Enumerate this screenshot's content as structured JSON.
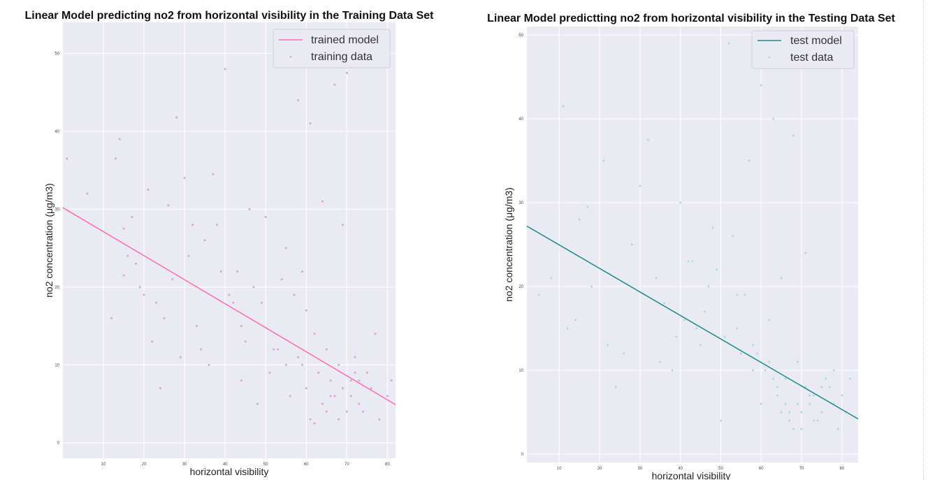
{
  "chart_data": [
    {
      "type": "scatter",
      "title": "Linear Model predicting no2 from horizontal visibility in the Training Data Set",
      "xlabel": "horizontal visibility",
      "ylabel": "no2 concentration (μg/m3)",
      "xlim": [
        0,
        82
      ],
      "ylim": [
        -2,
        54
      ],
      "xticks": [
        10,
        20,
        30,
        40,
        50,
        60,
        70,
        80
      ],
      "yticks": [
        0,
        10,
        20,
        30,
        40,
        50
      ],
      "grid": true,
      "background": "#eaeaf2",
      "legend_position": "top-right",
      "series": [
        {
          "name": "trained model",
          "kind": "line",
          "color": "#ff69b4",
          "x": [
            0,
            82
          ],
          "y": [
            30.2,
            4.9
          ]
        },
        {
          "name": "training data",
          "kind": "points",
          "color": "#dda0dd",
          "x": [
            1,
            6,
            13,
            12,
            15,
            14,
            15,
            17,
            18,
            20,
            21,
            24,
            26,
            27,
            28,
            30,
            31,
            32,
            35,
            37,
            38,
            40,
            41,
            43,
            44,
            46,
            47,
            49,
            50,
            52,
            54,
            55,
            57,
            58,
            59,
            60,
            61,
            63,
            64,
            65,
            66,
            67,
            68,
            69,
            70,
            71,
            72,
            73,
            74,
            75,
            76,
            77,
            78,
            80,
            81,
            33,
            36,
            39,
            42,
            45,
            48,
            51,
            53,
            56,
            62,
            29,
            25,
            22,
            19,
            16,
            23,
            34,
            44,
            55,
            66,
            70,
            72,
            68,
            64,
            60,
            58,
            62,
            67,
            71,
            73,
            65,
            69,
            63,
            61,
            59
          ],
          "y": [
            36.5,
            32,
            36.5,
            16,
            27.5,
            39,
            21.5,
            29,
            23,
            19,
            32.5,
            7,
            30.5,
            21,
            41.8,
            34,
            24,
            28,
            26,
            34.5,
            28,
            48,
            19,
            22,
            15,
            30,
            20,
            18,
            29,
            12,
            21,
            25,
            19,
            44,
            22,
            17,
            41,
            9,
            31,
            12,
            8,
            46,
            10,
            28,
            47.5,
            6,
            11,
            8,
            4,
            9,
            7,
            14,
            3,
            6,
            8,
            15,
            10,
            22,
            18,
            13,
            5,
            9,
            12,
            6,
            14,
            11,
            16,
            13,
            20,
            24,
            18,
            12,
            8,
            10,
            6,
            4,
            9,
            3,
            5,
            7,
            11,
            2.5,
            6,
            8,
            5,
            4,
            7,
            9,
            3,
            10
          ]
        }
      ]
    },
    {
      "type": "scatter",
      "title": "Linear Model predictting no2 from horizontal visibility in the Testing Data Set",
      "xlabel": "horizontal visibility",
      "ylabel": "no2 concentration (μg/m3)",
      "xlim": [
        2,
        84
      ],
      "ylim": [
        -1,
        51
      ],
      "xticks": [
        10,
        20,
        30,
        40,
        50,
        60,
        70,
        80
      ],
      "yticks": [
        0,
        10,
        20,
        30,
        40,
        50
      ],
      "grid": true,
      "background": "#eaeaf2",
      "legend_position": "top-right",
      "series": [
        {
          "name": "test model",
          "kind": "line",
          "color": "#1a8a8a",
          "x": [
            2,
            84
          ],
          "y": [
            27.2,
            4.2
          ]
        },
        {
          "name": "test data",
          "kind": "points",
          "color": "#a8dcdc",
          "x": [
            5,
            11,
            14,
            17,
            18,
            21,
            26,
            30,
            32,
            36,
            38,
            40,
            42,
            44,
            46,
            48,
            49,
            51,
            52,
            54,
            55,
            57,
            58,
            60,
            61,
            62,
            63,
            64,
            65,
            66,
            67,
            68,
            69,
            70,
            71,
            72,
            73,
            74,
            75,
            76,
            77,
            78,
            79,
            80,
            81,
            82,
            15,
            24,
            28,
            34,
            45,
            50,
            56,
            59,
            66,
            70,
            73,
            64,
            68,
            62,
            71,
            65,
            69,
            67,
            72,
            63,
            75,
            60,
            58,
            54,
            47,
            41,
            39,
            35,
            22,
            12,
            8,
            43,
            53,
            78
          ],
          "y": [
            19,
            41.5,
            16,
            29.5,
            20,
            35,
            12,
            32,
            37.5,
            18,
            10,
            30,
            23,
            15,
            17,
            27,
            22,
            14,
            49,
            19,
            12,
            35,
            13,
            44,
            10,
            16,
            40,
            8,
            21,
            9,
            5,
            38,
            11,
            3,
            24,
            6,
            7,
            4,
            5,
            9,
            8,
            6,
            3,
            7,
            5,
            9,
            28,
            8,
            25,
            21,
            13,
            4,
            19,
            12,
            6,
            5,
            4,
            7,
            3,
            11,
            8,
            5,
            6,
            4,
            7,
            9,
            8,
            6,
            10,
            15,
            20,
            16,
            14,
            11,
            13,
            15,
            21,
            23,
            26,
            10
          ]
        }
      ]
    }
  ]
}
